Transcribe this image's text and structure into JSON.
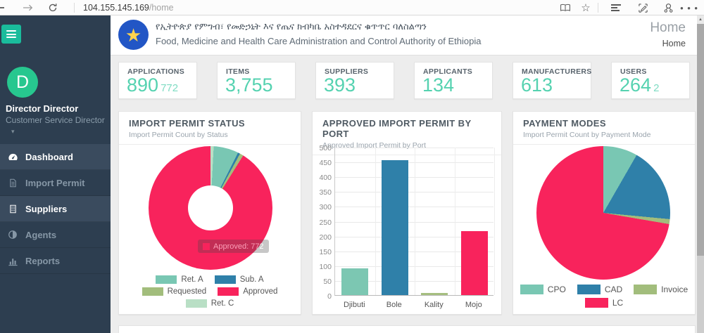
{
  "browser": {
    "url_host": "104.155.145.169",
    "url_path": "/home",
    "icons": [
      "back-icon",
      "forward-icon",
      "refresh-icon",
      "reading-view-icon",
      "favorites-star-icon",
      "hub-icon",
      "web-note-icon",
      "share-icon",
      "more-icon"
    ]
  },
  "sidebar": {
    "toggle_icon": "hamburger-menu-icon",
    "user": {
      "initial": "D",
      "name": "Director Director",
      "role": "Customer Service Director",
      "caret": "▾"
    },
    "items": [
      {
        "label": "Dashboard",
        "icon": "gauge-icon",
        "active": true
      },
      {
        "label": "Import Permit",
        "icon": "file-icon",
        "active": false
      },
      {
        "label": "Suppliers",
        "icon": "building-icon",
        "active": true
      },
      {
        "label": "Agents",
        "icon": "contrast-icon",
        "active": false
      },
      {
        "label": "Reports",
        "icon": "bar-chart-icon",
        "active": false
      }
    ]
  },
  "header": {
    "title_amharic": "የኢትዮጵያ የምግብ፣ የመድኃኒት እና የጤና ክብካቤ አስተዳደርና ቁጥጥር ባለስልጣን",
    "title_english": "Food, Medicine and Health Care Administration and Control Authority of Ethiopia",
    "page_title": "Home",
    "breadcrumb": "Home",
    "emblem_star": "★"
  },
  "stats": [
    {
      "label": "APPLICATIONS",
      "value": "890",
      "sub": "772"
    },
    {
      "label": "ITEMS",
      "value": "3,755",
      "sub": ""
    },
    {
      "label": "SUPPLIERS",
      "value": "393",
      "sub": ""
    },
    {
      "label": "APPLICANTS",
      "value": "134",
      "sub": ""
    },
    {
      "label": "MANUFACTURERS",
      "value": "613",
      "sub": ""
    },
    {
      "label": "USERS",
      "value": "264",
      "sub": "2"
    }
  ],
  "panels": {
    "status": {
      "title": "IMPORT PERMIT STATUS",
      "subtitle": "Import Permit Count by Status",
      "tooltip_text": "Approved: 772"
    },
    "port": {
      "title": "APPROVED IMPORT PERMIT BY PORT",
      "subtitle": "Approved Import Permit by Port"
    },
    "payment": {
      "title": "PAYMENT MODES",
      "subtitle": "Import Permit Count by Payment Mode"
    }
  },
  "colors": {
    "accent_green": "#1abc9c",
    "avatar_green": "#27c78f",
    "stat_teal": "#55d2b0",
    "sidebar_bg": "#2d3e50",
    "series_teal": "#79c7b3",
    "series_blue": "#2f80a9",
    "series_olive": "#a2bd7c",
    "series_pink": "#f8235c",
    "series_lightgreen": "#b9dfc5"
  },
  "chart_data": [
    {
      "type": "pie",
      "variant": "donut",
      "title": "Import Permit Status",
      "slices": [
        {
          "label": "Ret. C",
          "value": 7,
          "color": "#b9dfc5"
        },
        {
          "label": "Ret. A",
          "value": 55,
          "color": "#79c7b3"
        },
        {
          "label": "Sub. A",
          "value": 5,
          "color": "#2f80a9"
        },
        {
          "label": "Requested",
          "value": 8,
          "color": "#a2bd7c"
        },
        {
          "label": "Approved",
          "value": 772,
          "color": "#f8235c"
        }
      ],
      "legend_rows": [
        [
          "Ret. A",
          "Sub. A"
        ],
        [
          "Requested",
          "Approved"
        ],
        [
          "Ret. C"
        ]
      ],
      "tooltip": {
        "label": "Approved",
        "value": 772,
        "color": "#f8235c"
      }
    },
    {
      "type": "bar",
      "title": "Approved Import Permit by Port",
      "categories": [
        "Djibuti",
        "Bole",
        "Kality",
        "Mojo"
      ],
      "values": [
        90,
        455,
        8,
        215
      ],
      "colors": [
        "#7cc7b2",
        "#2f80a9",
        "#a6bf80",
        "#f8235c"
      ],
      "ylim": [
        0,
        500
      ],
      "ytick_step": 50,
      "grid": true,
      "xlabel": "",
      "ylabel": ""
    },
    {
      "type": "pie",
      "variant": "pie",
      "title": "Payment Modes",
      "slices": [
        {
          "label": "CPO",
          "value": 8.3,
          "color": "#79c7b3"
        },
        {
          "label": "CAD",
          "value": 18.2,
          "color": "#2f80a9"
        },
        {
          "label": "Invoice",
          "value": 1.2,
          "color": "#a2bd7c"
        },
        {
          "label": "LC",
          "value": 72.3,
          "color": "#f8235c"
        }
      ],
      "legend_rows": [
        [
          "CPO",
          "CAD",
          "Invoice"
        ],
        [
          "LC"
        ]
      ]
    }
  ]
}
